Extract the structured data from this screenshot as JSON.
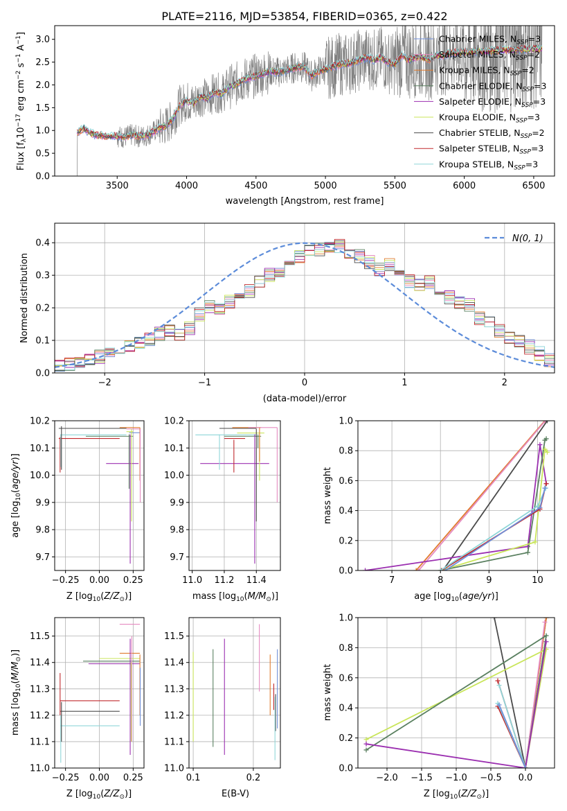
{
  "figure_title": "PLATE=2116, MJD=53854, FIBERID=0365, z=0.422",
  "series_styles": [
    {
      "name": "Chabrier MILES, N_SSP=3",
      "label": "Chabrier MILES, N",
      "sub": "SSP",
      "suffix": "=3",
      "color": "#6f8fd8"
    },
    {
      "name": "Salpeter MILES, N_SSP=2",
      "label": "Salpeter MILES, N",
      "sub": "SSP",
      "suffix": "=2",
      "color": "#e58bc0"
    },
    {
      "name": "Kroupa MILES, N_SSP=2",
      "label": "Kroupa MILES, N",
      "sub": "SSP",
      "suffix": "=2",
      "color": "#e07b2e"
    },
    {
      "name": "Chabrier ELODIE, N_SSP=3",
      "label": "Chabrier ELODIE, N",
      "sub": "SSP",
      "suffix": "=3",
      "color": "#5a8060"
    },
    {
      "name": "Salpeter ELODIE, N_SSP=3",
      "label": "Salpeter ELODIE, N",
      "sub": "SSP",
      "suffix": "=3",
      "color": "#9b2fb0"
    },
    {
      "name": "Kroupa ELODIE, N_SSP=3",
      "label": "Kroupa ELODIE, N",
      "sub": "SSP",
      "suffix": "=3",
      "color": "#c9e55a"
    },
    {
      "name": "Chabrier STELIB, N_SSP=2",
      "label": "Chabrier STELIB, N",
      "sub": "SSP",
      "suffix": "=2",
      "color": "#4a4a4a"
    },
    {
      "name": "Salpeter STELIB, N_SSP=3",
      "label": "Salpeter STELIB, N",
      "sub": "SSP",
      "suffix": "=3",
      "color": "#c0282c"
    },
    {
      "name": "Kroupa STELIB, N_SSP=3",
      "label": "Kroupa STELIB, N",
      "sub": "SSP",
      "suffix": "=3",
      "color": "#8fd6d8"
    }
  ],
  "chart_data": [
    {
      "id": "spectrum",
      "type": "line",
      "title": "PLATE=2116, MJD=53854, FIBERID=0365, z=0.422",
      "xlabel": "wavelength [Angstrom, rest frame]",
      "ylabel": "Flux [f_λ 10^-17 erg cm^-2 s^-1 A^-1]",
      "xlim": [
        3050,
        6650
      ],
      "ylim": [
        0,
        3.3
      ],
      "xticks": [
        3500,
        4000,
        4500,
        5000,
        5500,
        6000,
        6500
      ],
      "yticks": [
        0.0,
        0.5,
        1.0,
        1.5,
        2.0,
        2.5,
        3.0
      ],
      "data_series": {
        "name": "data",
        "color": "#808080"
      },
      "model_continuum": {
        "x": [
          3210,
          3260,
          3300,
          3350,
          3400,
          3450,
          3500,
          3550,
          3600,
          3650,
          3700,
          3750,
          3800,
          3850,
          3900,
          3950,
          4000,
          4050,
          4100,
          4150,
          4200,
          4250,
          4300,
          4350,
          4400,
          4450,
          4500,
          4550,
          4600,
          4650,
          4700,
          4750,
          4800,
          4850,
          4900,
          4950,
          5000,
          5050,
          5100,
          5150,
          5200,
          5250,
          5300,
          5350,
          5400,
          5450,
          5500,
          5550,
          5600,
          5650,
          5700,
          5750,
          5800,
          5850,
          5900
        ],
        "y": [
          0.95,
          1.05,
          0.95,
          0.9,
          0.88,
          0.87,
          0.88,
          0.85,
          0.9,
          0.87,
          0.88,
          0.95,
          1.05,
          1.1,
          1.25,
          1.55,
          1.65,
          1.6,
          1.75,
          1.7,
          1.85,
          1.8,
          1.95,
          2.0,
          2.1,
          2.15,
          2.2,
          2.25,
          2.3,
          2.28,
          2.3,
          2.35,
          2.4,
          2.38,
          2.2,
          2.3,
          2.35,
          2.4,
          2.45,
          2.45,
          2.5,
          2.55,
          2.6,
          2.55,
          2.6,
          2.5,
          2.45,
          2.65,
          2.55,
          2.6,
          2.6,
          2.55,
          2.65,
          2.65,
          2.7
        ]
      }
    },
    {
      "id": "residuals",
      "type": "line",
      "xlabel": "(data-model)/error",
      "ylabel": "Normed distribution",
      "xlim": [
        -2.5,
        2.5
      ],
      "ylim": [
        0,
        0.46
      ],
      "xticks": [
        -2,
        -1,
        0,
        1,
        2
      ],
      "yticks": [
        0.0,
        0.1,
        0.2,
        0.3,
        0.4
      ],
      "legend": "N(0,1)",
      "legend_color": "#5b8bd9",
      "bin_width": 0.1,
      "hist_base": [
        0.02,
        0.025,
        0.03,
        0.04,
        0.05,
        0.07,
        0.08,
        0.085,
        0.09,
        0.1,
        0.12,
        0.13,
        0.12,
        0.14,
        0.18,
        0.2,
        0.2,
        0.22,
        0.24,
        0.25,
        0.28,
        0.3,
        0.31,
        0.33,
        0.36,
        0.38,
        0.38,
        0.39,
        0.39,
        0.37,
        0.36,
        0.34,
        0.32,
        0.33,
        0.3,
        0.28,
        0.27,
        0.28,
        0.25,
        0.23,
        0.22,
        0.21,
        0.17,
        0.15,
        0.13,
        0.11,
        0.1,
        0.08,
        0.06,
        0.04
      ]
    },
    {
      "id": "age-vs-Z",
      "type": "scatter",
      "xlabel": "Z [log10(Z/Z⊙)]",
      "ylabel": "age [log10(age/yr)]",
      "xlim": [
        -0.33,
        0.33
      ],
      "ylim": [
        9.65,
        10.2
      ],
      "xticks": [
        -0.25,
        0.0,
        0.25
      ],
      "yticks": [
        9.7,
        9.8,
        9.9,
        10.0,
        10.1,
        10.2
      ],
      "hbars": [
        {
          "s": 4,
          "y": 10.043,
          "x0": 0.05,
          "x1": 0.29
        },
        {
          "s": 7,
          "y": 10.135,
          "x0": -0.3,
          "x1": 0.15
        },
        {
          "s": 8,
          "y": 10.148,
          "x0": -0.29,
          "x1": 0.2
        },
        {
          "s": 3,
          "y": 10.143,
          "x0": -0.1,
          "x1": 0.25
        },
        {
          "s": 6,
          "y": 10.172,
          "x0": -0.3,
          "x1": 0.2
        },
        {
          "s": 2,
          "y": 10.175,
          "x0": 0.15,
          "x1": 0.3
        },
        {
          "s": 5,
          "y": 10.16,
          "x0": 0.2,
          "x1": 0.25
        },
        {
          "s": 1,
          "y": 10.17,
          "x0": 0.2,
          "x1": 0.3
        },
        {
          "s": 0,
          "y": 10.156,
          "x0": 0.22,
          "x1": 0.3
        }
      ],
      "vbars": [
        {
          "s": 4,
          "x": 0.228,
          "y0": 9.675,
          "y1": 10.15
        },
        {
          "s": 5,
          "x": 0.238,
          "y0": 9.83,
          "y1": 10.17
        },
        {
          "s": 3,
          "x": 0.22,
          "y0": 9.95,
          "y1": 10.15
        },
        {
          "s": 2,
          "x": 0.3,
          "y0": 9.98,
          "y1": 10.175
        },
        {
          "s": 1,
          "x": 0.302,
          "y0": 9.9,
          "y1": 10.17
        },
        {
          "s": 7,
          "x": -0.29,
          "y0": 10.01,
          "y1": 10.14
        },
        {
          "s": 8,
          "x": -0.285,
          "y0": 10.03,
          "y1": 10.15
        },
        {
          "s": 6,
          "x": -0.28,
          "y0": 10.02,
          "y1": 10.18
        }
      ]
    },
    {
      "id": "age-vs-mass",
      "type": "scatter",
      "xlabel": "mass [log10(M/M⊙)]",
      "ylabel": "",
      "xlim": [
        10.98,
        11.55
      ],
      "ylim": [
        9.65,
        10.2
      ],
      "xticks": [
        11.0,
        11.2,
        11.4
      ],
      "yticks": [
        9.7,
        9.8,
        9.9,
        10.0,
        10.1,
        10.2
      ],
      "hbars": [
        {
          "s": 4,
          "y": 10.043,
          "x0": 11.05,
          "x1": 11.48
        },
        {
          "s": 7,
          "y": 10.135,
          "x0": 11.2,
          "x1": 11.33
        },
        {
          "s": 8,
          "y": 10.148,
          "x0": 11.02,
          "x1": 11.4
        },
        {
          "s": 3,
          "y": 10.143,
          "x0": 11.2,
          "x1": 11.43
        },
        {
          "s": 6,
          "y": 10.172,
          "x0": 11.17,
          "x1": 11.4
        },
        {
          "s": 2,
          "y": 10.175,
          "x0": 11.25,
          "x1": 11.43
        },
        {
          "s": 1,
          "y": 10.175,
          "x0": 11.35,
          "x1": 11.53
        },
        {
          "s": 5,
          "y": 10.155,
          "x0": 11.28,
          "x1": 11.45
        }
      ],
      "vbars": [
        {
          "s": 4,
          "x": 11.39,
          "y0": 9.675,
          "y1": 10.15
        },
        {
          "s": 6,
          "x": 11.4,
          "y0": 9.83,
          "y1": 10.17
        },
        {
          "s": 5,
          "x": 11.42,
          "y0": 9.98,
          "y1": 10.15
        },
        {
          "s": 1,
          "x": 11.53,
          "y0": 9.9,
          "y1": 10.175
        },
        {
          "s": 8,
          "x": 11.17,
          "y0": 10.02,
          "y1": 10.15
        },
        {
          "s": 7,
          "x": 11.26,
          "y0": 10.01,
          "y1": 10.13
        },
        {
          "s": 2,
          "x": 11.42,
          "y0": 10.05,
          "y1": 10.175
        },
        {
          "s": 3,
          "x": 11.41,
          "y0": 10.1,
          "y1": 10.15
        }
      ]
    },
    {
      "id": "mass-weight-vs-age",
      "type": "line",
      "xlabel": "age [log10(age/yr)]",
      "ylabel": "mass weight",
      "xlim": [
        6.3,
        10.35
      ],
      "ylim": [
        0,
        1.0
      ],
      "xticks": [
        7,
        8,
        9,
        10
      ],
      "yticks": [
        0.0,
        0.2,
        0.4,
        0.6,
        0.8,
        1.0
      ],
      "lines": [
        {
          "s": 2,
          "x": [
            7.5,
            10.15
          ],
          "y": [
            0.0,
            1.0
          ]
        },
        {
          "s": 1,
          "x": [
            7.55,
            10.16
          ],
          "y": [
            0.0,
            1.0
          ]
        },
        {
          "s": 6,
          "x": [
            8.05,
            10.2
          ],
          "y": [
            0.0,
            1.0
          ]
        },
        {
          "s": 4,
          "x": [
            6.45,
            9.8,
            10.05,
            10.18
          ],
          "y": [
            0.0,
            0.16,
            0.84,
            0.58
          ]
        },
        {
          "s": 3,
          "x": [
            8.0,
            9.8,
            10.15,
            10.18
          ],
          "y": [
            0.0,
            0.12,
            0.87,
            0.88
          ]
        },
        {
          "s": 5,
          "x": [
            8.0,
            9.95,
            10.15,
            10.2
          ],
          "y": [
            0.0,
            0.19,
            0.81,
            0.79
          ]
        },
        {
          "s": 7,
          "x": [
            8.02,
            10.05,
            10.18
          ],
          "y": [
            0.0,
            0.41,
            0.58
          ]
        },
        {
          "s": 8,
          "x": [
            8.0,
            10.0,
            10.17
          ],
          "y": [
            0.0,
            0.43,
            0.55
          ]
        },
        {
          "s": 0,
          "x": [
            8.1,
            10.05,
            10.15
          ],
          "y": [
            0.0,
            0.42,
            0.55
          ]
        }
      ]
    },
    {
      "id": "mass-vs-Z",
      "type": "scatter",
      "xlabel": "Z [log10(Z/Z⊙)]",
      "ylabel": "mass [log10(M/M⊙)]",
      "xlim": [
        -0.33,
        0.33
      ],
      "ylim": [
        11.0,
        11.57
      ],
      "xticks": [
        -0.25,
        0.0,
        0.25
      ],
      "yticks": [
        11.0,
        11.1,
        11.2,
        11.3,
        11.4,
        11.5
      ],
      "hbars": [
        {
          "s": 7,
          "y": 11.255,
          "x0": -0.29,
          "x1": 0.15
        },
        {
          "s": 6,
          "y": 11.215,
          "x0": -0.29,
          "x1": 0.15
        },
        {
          "s": 8,
          "y": 11.16,
          "x0": -0.29,
          "x1": 0.15
        },
        {
          "s": 3,
          "y": 11.405,
          "x0": -0.12,
          "x1": 0.3
        },
        {
          "s": 4,
          "y": 11.395,
          "x0": -0.08,
          "x1": 0.3
        },
        {
          "s": 5,
          "y": 11.415,
          "x0": 0.0,
          "x1": 0.3
        },
        {
          "s": 2,
          "y": 11.435,
          "x0": 0.15,
          "x1": 0.3
        },
        {
          "s": 1,
          "y": 11.545,
          "x0": 0.15,
          "x1": 0.3
        }
      ],
      "vbars": [
        {
          "s": 7,
          "x": -0.29,
          "y0": 11.2,
          "y1": 11.36
        },
        {
          "s": 8,
          "x": -0.285,
          "y0": 11.02,
          "y1": 11.2
        },
        {
          "s": 6,
          "x": -0.28,
          "y0": 11.1,
          "y1": 11.25
        },
        {
          "s": 4,
          "x": 0.228,
          "y0": 11.05,
          "y1": 11.49
        },
        {
          "s": 1,
          "x": 0.24,
          "y0": 11.1,
          "y1": 11.5
        },
        {
          "s": 5,
          "x": 0.235,
          "y0": 11.1,
          "y1": 11.4
        },
        {
          "s": 2,
          "x": 0.3,
          "y0": 11.2,
          "y1": 11.43
        },
        {
          "s": 0,
          "x": 0.302,
          "y0": 11.16,
          "y1": 11.38
        }
      ]
    },
    {
      "id": "mass-vs-EBV",
      "type": "scatter",
      "xlabel": "E(B-V)",
      "ylabel": "",
      "xlim": [
        0.093,
        0.245
      ],
      "ylim": [
        11.0,
        11.57
      ],
      "xticks": [
        0.1,
        0.2
      ],
      "yticks": [
        11.0,
        11.1,
        11.2,
        11.3,
        11.4,
        11.5
      ],
      "vbars": [
        {
          "s": 5,
          "x": 0.1,
          "y0": 11.1,
          "y1": 11.44
        },
        {
          "s": 3,
          "x": 0.133,
          "y0": 11.08,
          "y1": 11.45
        },
        {
          "s": 4,
          "x": 0.152,
          "y0": 11.05,
          "y1": 11.49
        },
        {
          "s": 1,
          "x": 0.21,
          "y0": 11.29,
          "y1": 11.545
        },
        {
          "s": 2,
          "x": 0.228,
          "y0": 11.2,
          "y1": 11.43
        },
        {
          "s": 7,
          "x": 0.234,
          "y0": 11.22,
          "y1": 11.32
        },
        {
          "s": 0,
          "x": 0.24,
          "y0": 11.15,
          "y1": 11.45
        },
        {
          "s": 6,
          "x": 0.237,
          "y0": 11.14,
          "y1": 11.28
        },
        {
          "s": 8,
          "x": 0.236,
          "y0": 11.03,
          "y1": 11.27
        }
      ]
    },
    {
      "id": "mass-weight-vs-Z",
      "type": "line",
      "xlabel": "Z [log10(Z/Z⊙)]",
      "ylabel": "mass weight",
      "xlim": [
        -2.42,
        0.42
      ],
      "ylim": [
        0,
        1.0
      ],
      "xticks": [
        -2.0,
        -1.5,
        -1.0,
        -0.5,
        0.0
      ],
      "yticks": [
        0.0,
        0.2,
        0.4,
        0.6,
        0.8,
        1.0
      ],
      "lines": [
        {
          "s": 6,
          "x": [
            -0.45,
            0.0,
            0.3
          ],
          "y": [
            1.0,
            0.0,
            1.0
          ]
        },
        {
          "s": 2,
          "x": [
            0.0,
            0.3
          ],
          "y": [
            0.0,
            1.0
          ]
        },
        {
          "s": 1,
          "x": [
            0.0,
            0.28
          ],
          "y": [
            0.0,
            0.97
          ]
        },
        {
          "s": 5,
          "x": [
            -2.3,
            0.3,
            0.0
          ],
          "y": [
            0.19,
            0.79,
            0.0
          ]
        },
        {
          "s": 3,
          "x": [
            -2.3,
            0.3,
            0.0
          ],
          "y": [
            0.12,
            0.88,
            0.0
          ]
        },
        {
          "s": 4,
          "x": [
            -2.3,
            0.0,
            0.3
          ],
          "y": [
            0.16,
            0.0,
            0.84
          ]
        },
        {
          "s": 7,
          "x": [
            -0.4,
            0.0,
            -0.4
          ],
          "y": [
            0.41,
            0.0,
            0.58
          ]
        },
        {
          "s": 8,
          "x": [
            -0.4,
            0.0,
            -0.38
          ],
          "y": [
            0.43,
            0.0,
            0.55
          ]
        },
        {
          "s": 0,
          "x": [
            -0.38,
            0.0
          ],
          "y": [
            0.42,
            0.0
          ]
        }
      ]
    }
  ]
}
